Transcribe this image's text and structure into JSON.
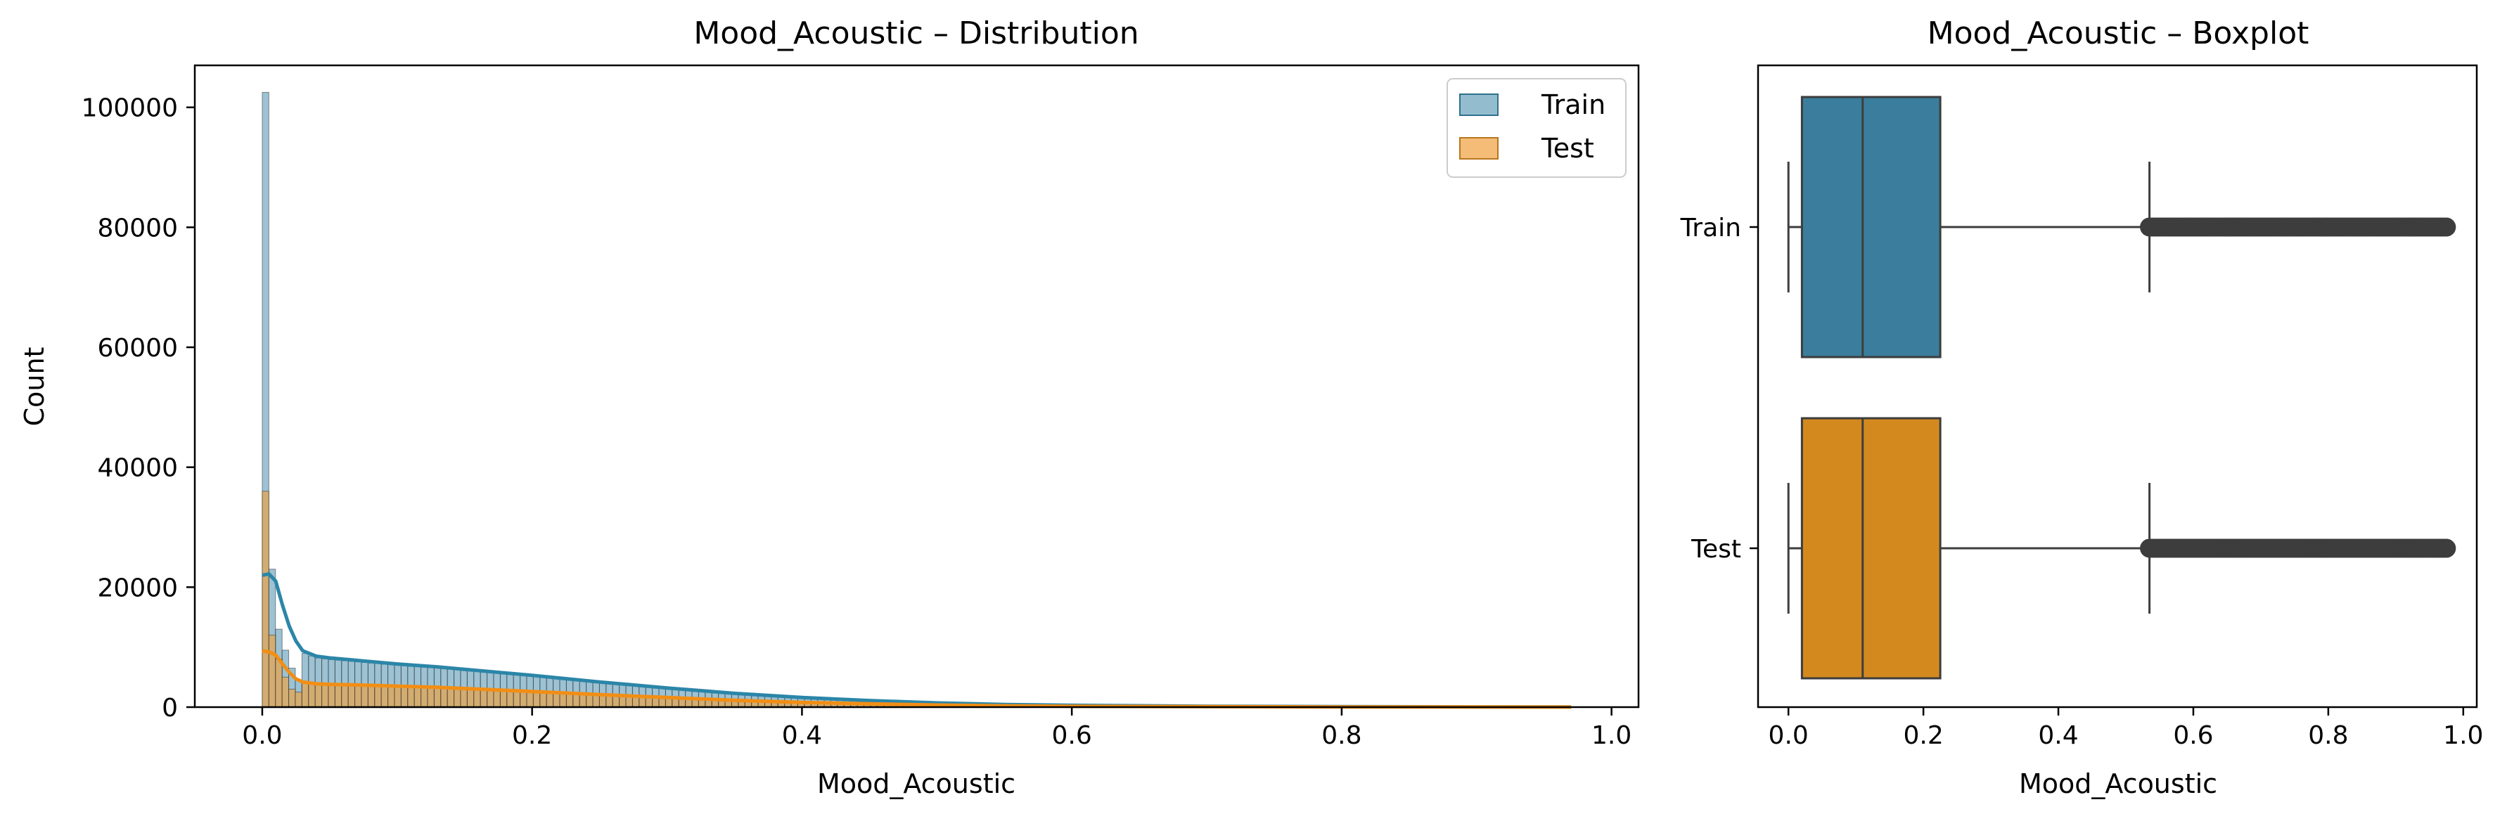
{
  "chart_data": [
    {
      "type": "histogram",
      "title": "Mood_Acoustic – Distribution",
      "xlabel": "Mood_Acoustic",
      "ylabel": "Count",
      "xlim": [
        -0.05,
        1.02
      ],
      "ylim": [
        0,
        107000
      ],
      "xticks": [
        "0.0",
        "0.2",
        "0.4",
        "0.6",
        "0.8",
        "1.0"
      ],
      "yticks": [
        "0",
        "20000",
        "40000",
        "60000",
        "80000",
        "100000"
      ],
      "legend": {
        "position": "top-right",
        "entries": [
          "Train",
          "Test"
        ]
      },
      "series": [
        {
          "name": "Train",
          "color": "#3a86a8",
          "kde": [
            [
              0.0,
              22000
            ],
            [
              0.005,
              22200
            ],
            [
              0.01,
              21000
            ],
            [
              0.015,
              17000
            ],
            [
              0.02,
              13500
            ],
            [
              0.025,
              11000
            ],
            [
              0.03,
              9400
            ],
            [
              0.04,
              8500
            ],
            [
              0.05,
              8200
            ],
            [
              0.07,
              7800
            ],
            [
              0.1,
              7200
            ],
            [
              0.13,
              6700
            ],
            [
              0.15,
              6300
            ],
            [
              0.2,
              5300
            ],
            [
              0.25,
              4200
            ],
            [
              0.3,
              3200
            ],
            [
              0.35,
              2300
            ],
            [
              0.4,
              1600
            ],
            [
              0.45,
              1100
            ],
            [
              0.5,
              700
            ],
            [
              0.55,
              450
            ],
            [
              0.6,
              300
            ],
            [
              0.7,
              150
            ],
            [
              0.8,
              80
            ],
            [
              0.9,
              40
            ],
            [
              0.97,
              20
            ]
          ],
          "bins": [
            [
              0.0,
              102500
            ],
            [
              0.005,
              23000
            ],
            [
              0.01,
              13000
            ],
            [
              0.015,
              9500
            ],
            [
              0.02,
              6500
            ],
            [
              0.025,
              4500
            ],
            [
              0.03,
              4000
            ]
          ]
        },
        {
          "name": "Test",
          "color": "#f0a03c",
          "kde": [
            [
              0.0,
              9400
            ],
            [
              0.005,
              9200
            ],
            [
              0.01,
              8700
            ],
            [
              0.015,
              7200
            ],
            [
              0.02,
              5800
            ],
            [
              0.025,
              4700
            ],
            [
              0.03,
              4200
            ],
            [
              0.04,
              3900
            ],
            [
              0.05,
              3800
            ],
            [
              0.07,
              3700
            ],
            [
              0.1,
              3500
            ],
            [
              0.13,
              3300
            ],
            [
              0.15,
              3100
            ],
            [
              0.2,
              2600
            ],
            [
              0.25,
              2100
            ],
            [
              0.3,
              1600
            ],
            [
              0.35,
              1150
            ],
            [
              0.4,
              800
            ],
            [
              0.45,
              550
            ],
            [
              0.5,
              350
            ],
            [
              0.55,
              220
            ],
            [
              0.6,
              150
            ],
            [
              0.7,
              80
            ],
            [
              0.8,
              40
            ],
            [
              0.9,
              20
            ],
            [
              0.97,
              10
            ]
          ],
          "bins": [
            [
              0.0,
              36000
            ],
            [
              0.005,
              12000
            ],
            [
              0.01,
              8000
            ],
            [
              0.015,
              5000
            ],
            [
              0.02,
              3000
            ],
            [
              0.025,
              2500
            ],
            [
              0.03,
              2200
            ]
          ]
        }
      ]
    },
    {
      "type": "boxplot",
      "title": "Mood_Acoustic – Boxplot",
      "xlabel": "Mood_Acoustic",
      "xlim": [
        -0.045,
        1.02
      ],
      "xticks": [
        "0.0",
        "0.2",
        "0.4",
        "0.6",
        "0.8",
        "1.0"
      ],
      "categories": [
        "Train",
        "Test"
      ],
      "series": [
        {
          "name": "Train",
          "color": "#3b7d9c",
          "whisker_low": 0.0,
          "q1": 0.02,
          "median": 0.11,
          "q3": 0.225,
          "whisker_high": 0.535,
          "outliers_range": [
            0.535,
            0.975
          ]
        },
        {
          "name": "Test",
          "color": "#d4891f",
          "whisker_low": 0.0,
          "q1": 0.02,
          "median": 0.11,
          "q3": 0.225,
          "whisker_high": 0.535,
          "outliers_range": [
            0.535,
            0.975
          ]
        }
      ]
    }
  ]
}
